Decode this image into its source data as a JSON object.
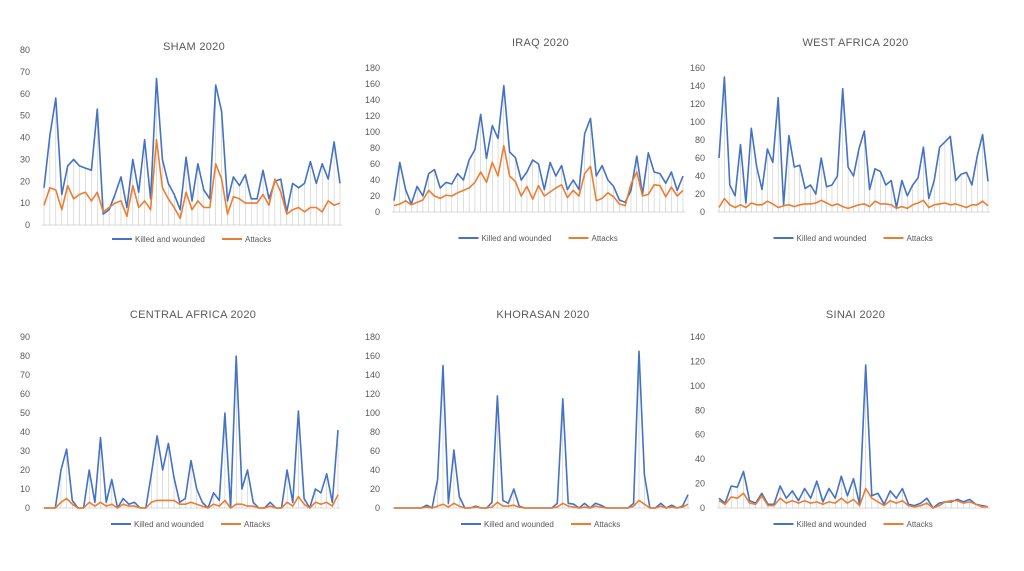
{
  "colors": {
    "killed": "#4472C4",
    "attacks": "#ED7D31",
    "grid": "#D9D9D9",
    "drop": "#BFBFBF"
  },
  "chart_data": [
    {
      "type": "line",
      "title": "SHAM 2020",
      "ylim": [
        0,
        80
      ],
      "yticks": [
        0,
        10,
        20,
        30,
        40,
        50,
        60,
        70,
        80
      ],
      "legend": "bottom",
      "grid": false,
      "series": [
        {
          "name": "Killed and wounded",
          "values": [
            17,
            41,
            58,
            14,
            27,
            30,
            27,
            26,
            25,
            53,
            5,
            7,
            14,
            22,
            8,
            30,
            15,
            39,
            12,
            67,
            30,
            19,
            14,
            7,
            31,
            11,
            28,
            16,
            12,
            64,
            52,
            11,
            22,
            18,
            23,
            12,
            12,
            25,
            12,
            20,
            21,
            6,
            19,
            17,
            19,
            29,
            19,
            28,
            21,
            38,
            19
          ]
        },
        {
          "name": "Attacks",
          "values": [
            9,
            17,
            16,
            7,
            18,
            12,
            14,
            15,
            11,
            15,
            6,
            8,
            10,
            11,
            4,
            18,
            8,
            11,
            7,
            39,
            17,
            12,
            8,
            3,
            15,
            7,
            11,
            8,
            8,
            28,
            21,
            5,
            13,
            12,
            10,
            10,
            10,
            14,
            9,
            21,
            15,
            5,
            7,
            8,
            6,
            8,
            8,
            6,
            11,
            9,
            10
          ]
        }
      ]
    },
    {
      "type": "line",
      "title": "IRAQ 2020",
      "ylim": [
        0,
        180
      ],
      "yticks": [
        0,
        20,
        40,
        60,
        80,
        100,
        120,
        140,
        160,
        180
      ],
      "legend": "bottom",
      "grid": false,
      "series": [
        {
          "name": "Killed and wounded",
          "values": [
            14,
            62,
            28,
            10,
            32,
            20,
            48,
            53,
            30,
            37,
            35,
            48,
            40,
            65,
            78,
            122,
            67,
            108,
            92,
            158,
            75,
            68,
            40,
            50,
            65,
            60,
            28,
            62,
            45,
            58,
            28,
            40,
            28,
            98,
            117,
            45,
            58,
            40,
            32,
            15,
            12,
            27,
            70,
            22,
            74,
            50,
            48,
            36,
            50,
            27,
            45
          ]
        },
        {
          "name": "Attacks",
          "values": [
            8,
            10,
            14,
            9,
            12,
            15,
            27,
            20,
            17,
            21,
            20,
            24,
            27,
            30,
            37,
            50,
            37,
            62,
            45,
            83,
            45,
            38,
            20,
            32,
            16,
            33,
            20,
            25,
            30,
            34,
            18,
            27,
            20,
            48,
            57,
            14,
            17,
            24,
            19,
            10,
            8,
            35,
            50,
            20,
            22,
            34,
            33,
            19,
            31,
            20,
            27
          ]
        }
      ]
    },
    {
      "type": "line",
      "title": "WEST AFRICA 2020",
      "ylim": [
        0,
        160
      ],
      "yticks": [
        0,
        20,
        40,
        60,
        80,
        100,
        120,
        140,
        160
      ],
      "legend": "bottom",
      "grid": false,
      "series": [
        {
          "name": "Killed and wounded",
          "values": [
            60,
            150,
            30,
            18,
            75,
            10,
            93,
            50,
            25,
            70,
            55,
            127,
            8,
            85,
            50,
            52,
            26,
            30,
            20,
            60,
            28,
            30,
            40,
            137,
            50,
            40,
            70,
            90,
            25,
            48,
            45,
            30,
            35,
            5,
            35,
            18,
            30,
            38,
            72,
            15,
            35,
            72,
            78,
            84,
            35,
            42,
            44,
            30,
            62,
            86,
            34
          ]
        },
        {
          "name": "Attacks",
          "values": [
            5,
            15,
            8,
            5,
            8,
            5,
            10,
            8,
            8,
            12,
            9,
            5,
            7,
            8,
            6,
            8,
            9,
            9,
            10,
            13,
            10,
            7,
            9,
            6,
            4,
            6,
            8,
            9,
            6,
            12,
            9,
            9,
            8,
            4,
            6,
            4,
            8,
            10,
            13,
            5,
            8,
            9,
            10,
            8,
            9,
            7,
            5,
            8,
            8,
            12,
            7
          ]
        }
      ]
    },
    {
      "type": "line",
      "title": "CENTRAL AFRICA 2020",
      "ylim": [
        0,
        90
      ],
      "yticks": [
        0,
        10,
        20,
        30,
        40,
        50,
        60,
        70,
        80,
        90
      ],
      "legend": "bottom",
      "grid": false,
      "series": [
        {
          "name": "Killed and wounded",
          "values": [
            0,
            0,
            0,
            20,
            31,
            4,
            0,
            0,
            20,
            3,
            37,
            3,
            15,
            0,
            5,
            2,
            3,
            0,
            0,
            18,
            38,
            20,
            34,
            16,
            3,
            5,
            25,
            10,
            3,
            0,
            8,
            4,
            50,
            0,
            80,
            10,
            20,
            3,
            0,
            0,
            3,
            0,
            0,
            20,
            3,
            51,
            5,
            0,
            10,
            8,
            18,
            3,
            41
          ]
        },
        {
          "name": "Attacks",
          "values": [
            0,
            0,
            0,
            3,
            5,
            2,
            0,
            0,
            3,
            1,
            3,
            1,
            2,
            0,
            2,
            1,
            1,
            0,
            0,
            3,
            4,
            4,
            4,
            4,
            2,
            2,
            3,
            2,
            1,
            0,
            2,
            1,
            4,
            0,
            2,
            2,
            1,
            1,
            0,
            0,
            1,
            0,
            0,
            3,
            1,
            6,
            2,
            0,
            3,
            2,
            3,
            1,
            7
          ]
        }
      ]
    },
    {
      "type": "line",
      "title": "KHORASAN 2020",
      "ylim": [
        0,
        180
      ],
      "yticks": [
        0,
        20,
        40,
        60,
        80,
        100,
        120,
        140,
        160,
        180
      ],
      "legend": "bottom",
      "grid": false,
      "series": [
        {
          "name": "Killed and wounded",
          "values": [
            0,
            0,
            0,
            0,
            0,
            0,
            3,
            0,
            30,
            150,
            5,
            61,
            12,
            0,
            0,
            2,
            0,
            0,
            6,
            118,
            8,
            5,
            20,
            2,
            0,
            0,
            0,
            0,
            0,
            0,
            5,
            115,
            5,
            4,
            0,
            5,
            0,
            5,
            3,
            0,
            0,
            0,
            0,
            0,
            5,
            165,
            35,
            0,
            0,
            5,
            0,
            3,
            0,
            2,
            14
          ]
        },
        {
          "name": "Attacks",
          "values": [
            0,
            0,
            0,
            0,
            0,
            0,
            1,
            0,
            2,
            4,
            1,
            5,
            2,
            0,
            0,
            1,
            0,
            0,
            1,
            6,
            2,
            2,
            3,
            1,
            0,
            0,
            0,
            0,
            0,
            0,
            1,
            5,
            2,
            1,
            0,
            1,
            0,
            2,
            1,
            0,
            0,
            0,
            0,
            0,
            2,
            8,
            4,
            0,
            0,
            2,
            0,
            1,
            0,
            1,
            4
          ]
        }
      ]
    },
    {
      "type": "line",
      "title": "SINAI 2020",
      "ylim": [
        0,
        140
      ],
      "yticks": [
        0,
        20,
        40,
        60,
        80,
        100,
        120,
        140
      ],
      "legend": "bottom",
      "grid": false,
      "series": [
        {
          "name": "Killed and wounded",
          "values": [
            8,
            4,
            18,
            17,
            30,
            6,
            4,
            12,
            3,
            3,
            18,
            8,
            14,
            6,
            16,
            8,
            22,
            5,
            16,
            8,
            26,
            10,
            24,
            3,
            117,
            10,
            12,
            3,
            14,
            8,
            16,
            3,
            2,
            4,
            8,
            0,
            4,
            5,
            5,
            7,
            5,
            7,
            3,
            2,
            1
          ]
        },
        {
          "name": "Attacks",
          "values": [
            6,
            3,
            9,
            8,
            12,
            4,
            3,
            10,
            2,
            2,
            8,
            4,
            6,
            4,
            6,
            4,
            5,
            3,
            5,
            4,
            8,
            4,
            7,
            2,
            16,
            8,
            5,
            2,
            6,
            4,
            6,
            2,
            1,
            2,
            4,
            0,
            2,
            5,
            6,
            6,
            4,
            5,
            3,
            1,
            1
          ]
        }
      ]
    }
  ]
}
